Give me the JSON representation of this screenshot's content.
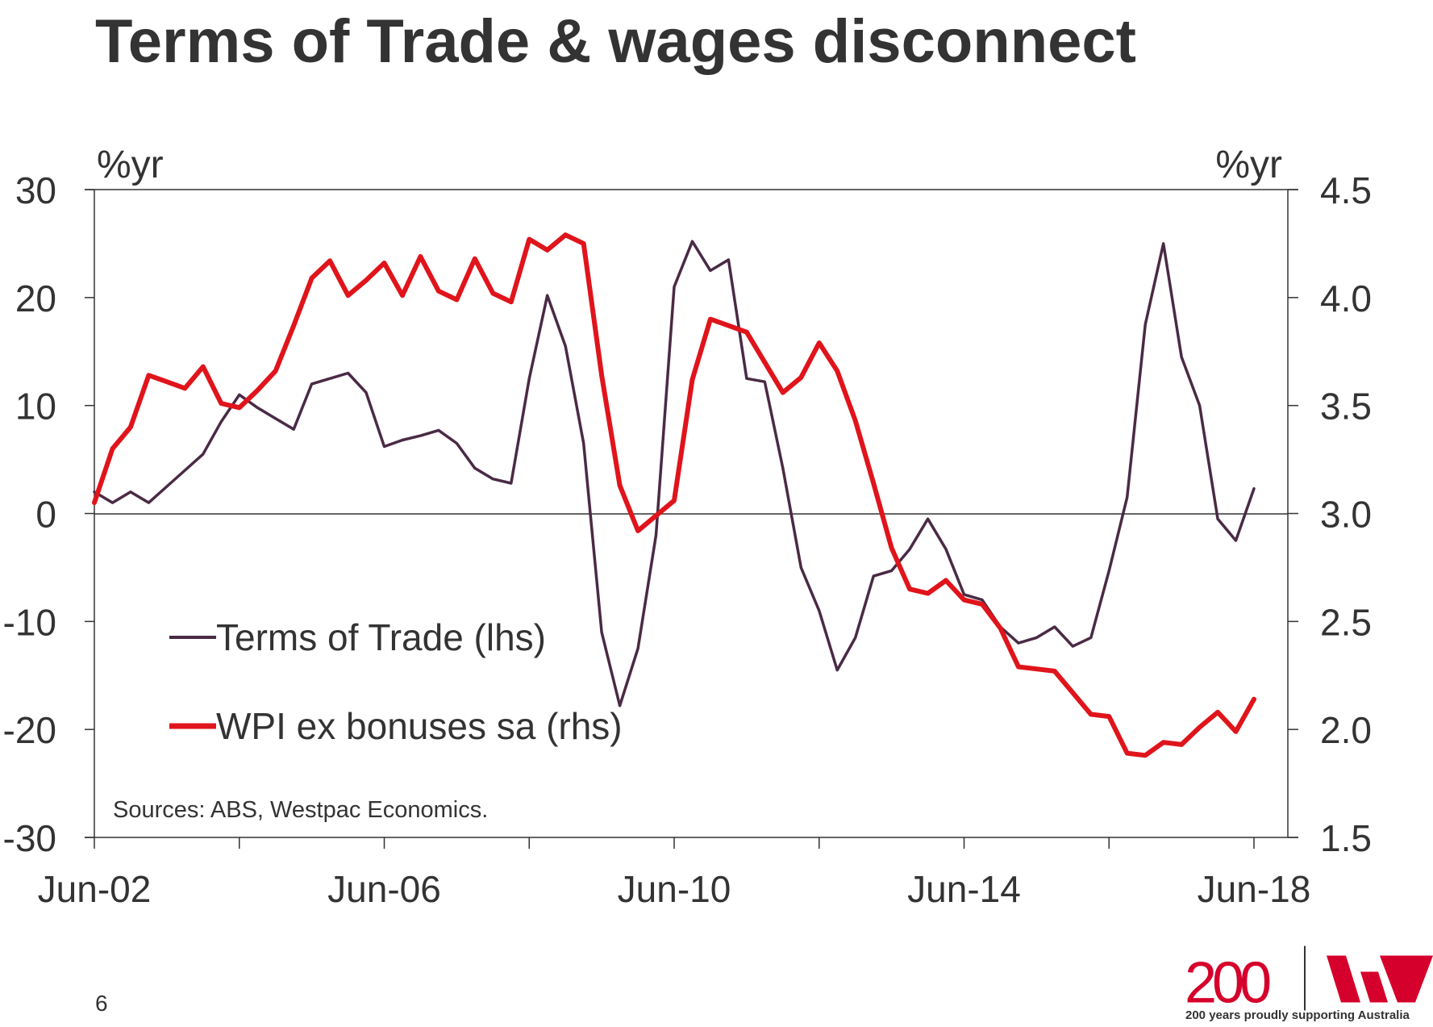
{
  "page": {
    "title": "Terms of Trade & wages disconnect",
    "page_number": "6",
    "tagline": "200 years proudly supporting Australia",
    "logo_text": "200"
  },
  "colors": {
    "terms_of_trade": "#4a2a45",
    "wpi": "#e0141b",
    "axis": "#333333",
    "brand_red": "#d5002b"
  },
  "chart_data": {
    "type": "line",
    "title": "Terms of Trade & wages disconnect",
    "left_axis": {
      "unit_label": "%yr",
      "range": [
        -30,
        30
      ],
      "ticks": [
        "-30",
        "-20",
        "-10",
        "0",
        "10",
        "20",
        "30"
      ]
    },
    "right_axis": {
      "unit_label": "%yr",
      "range": [
        1.5,
        4.5
      ],
      "ticks": [
        "1.5",
        "2.0",
        "2.5",
        "3.0",
        "3.5",
        "4.0",
        "4.5"
      ]
    },
    "x_axis": {
      "range": [
        "Jun-02",
        "Jun-18"
      ],
      "tick_labels": [
        "Jun-02",
        "Jun-06",
        "Jun-10",
        "Jun-14",
        "Jun-18"
      ]
    },
    "legend": {
      "placement": "bottom-left"
    },
    "source": "Sources: ABS, Westpac Economics.",
    "grid": false,
    "series": [
      {
        "name": "Terms of Trade (lhs)",
        "axis": "left",
        "x": [
          "Jun-02",
          "Sep-02",
          "Dec-02",
          "Mar-03",
          "Jun-03",
          "Sep-03",
          "Dec-03",
          "Mar-04",
          "Jun-04",
          "Sep-04",
          "Dec-04",
          "Mar-05",
          "Jun-05",
          "Sep-05",
          "Dec-05",
          "Mar-06",
          "Jun-06",
          "Sep-06",
          "Dec-06",
          "Mar-07",
          "Jun-07",
          "Sep-07",
          "Dec-07",
          "Mar-08",
          "Jun-08",
          "Sep-08",
          "Dec-08",
          "Mar-09",
          "Jun-09",
          "Sep-09",
          "Dec-09",
          "Mar-10",
          "Jun-10",
          "Sep-10",
          "Dec-10",
          "Mar-11",
          "Jun-11",
          "Sep-11",
          "Dec-11",
          "Mar-12",
          "Jun-12",
          "Sep-12",
          "Dec-12",
          "Mar-13",
          "Jun-13",
          "Sep-13",
          "Dec-13",
          "Mar-14",
          "Jun-14",
          "Sep-14",
          "Dec-14",
          "Mar-15",
          "Jun-15",
          "Sep-15",
          "Dec-15",
          "Mar-16",
          "Jun-16",
          "Sep-16",
          "Dec-16",
          "Mar-17",
          "Jun-17",
          "Sep-17",
          "Dec-17",
          "Mar-18",
          "Jun-18"
        ],
        "values": [
          2.0,
          1.0,
          2.0,
          1.0,
          2.5,
          4.0,
          5.5,
          8.5,
          11.0,
          9.8,
          8.8,
          7.8,
          12.0,
          12.5,
          13.0,
          11.2,
          6.2,
          6.8,
          7.2,
          7.7,
          6.5,
          4.2,
          3.2,
          2.8,
          12.5,
          20.2,
          15.5,
          6.5,
          -11.0,
          -17.8,
          -12.5,
          -2.0,
          21.0,
          25.2,
          22.5,
          23.5,
          12.5,
          12.2,
          4.2,
          -5.0,
          -9.0,
          -14.5,
          -11.5,
          -5.8,
          -5.3,
          -3.3,
          -0.5,
          -3.3,
          -7.5,
          -8.0,
          -10.5,
          -12.0,
          -11.5,
          -10.5,
          -12.3,
          -11.5,
          -5.3,
          1.5,
          17.5,
          25.0,
          14.5,
          10.0,
          -0.5,
          -2.5,
          2.3
        ]
      },
      {
        "name": "WPI ex bonuses sa (rhs)",
        "axis": "right",
        "x": [
          "Jun-02",
          "Sep-02",
          "Dec-02",
          "Mar-03",
          "Jun-03",
          "Sep-03",
          "Dec-03",
          "Mar-04",
          "Jun-04",
          "Sep-04",
          "Dec-04",
          "Mar-05",
          "Jun-05",
          "Sep-05",
          "Dec-05",
          "Mar-06",
          "Jun-06",
          "Sep-06",
          "Dec-06",
          "Mar-07",
          "Jun-07",
          "Sep-07",
          "Dec-07",
          "Mar-08",
          "Jun-08",
          "Sep-08",
          "Dec-08",
          "Mar-09",
          "Jun-09",
          "Sep-09",
          "Dec-09",
          "Mar-10",
          "Jun-10",
          "Sep-10",
          "Dec-10",
          "Mar-11",
          "Jun-11",
          "Sep-11",
          "Dec-11",
          "Mar-12",
          "Jun-12",
          "Sep-12",
          "Dec-12",
          "Mar-13",
          "Jun-13",
          "Sep-13",
          "Dec-13",
          "Mar-14",
          "Jun-14",
          "Sep-14",
          "Dec-14",
          "Mar-15",
          "Jun-15",
          "Sep-15",
          "Dec-15",
          "Mar-16",
          "Jun-16",
          "Sep-16",
          "Dec-16",
          "Mar-17",
          "Jun-17",
          "Sep-17",
          "Dec-17",
          "Mar-18",
          "Jun-18"
        ],
        "values": [
          3.05,
          3.3,
          3.4,
          3.64,
          3.61,
          3.58,
          3.68,
          3.51,
          3.49,
          3.57,
          3.66,
          3.87,
          4.09,
          4.17,
          4.01,
          4.08,
          4.16,
          4.01,
          4.19,
          4.03,
          3.99,
          4.18,
          4.02,
          3.98,
          4.27,
          4.22,
          4.29,
          4.25,
          3.64,
          3.13,
          2.92,
          2.99,
          3.06,
          3.62,
          3.9,
          3.87,
          3.84,
          3.7,
          3.56,
          3.63,
          3.79,
          3.66,
          3.43,
          3.14,
          2.84,
          2.65,
          2.63,
          2.69,
          2.6,
          2.58,
          2.47,
          2.29,
          2.28,
          2.27,
          2.17,
          2.07,
          2.06,
          1.89,
          1.88,
          1.94,
          1.93,
          2.01,
          2.08,
          1.99,
          2.14
        ]
      }
    ]
  }
}
